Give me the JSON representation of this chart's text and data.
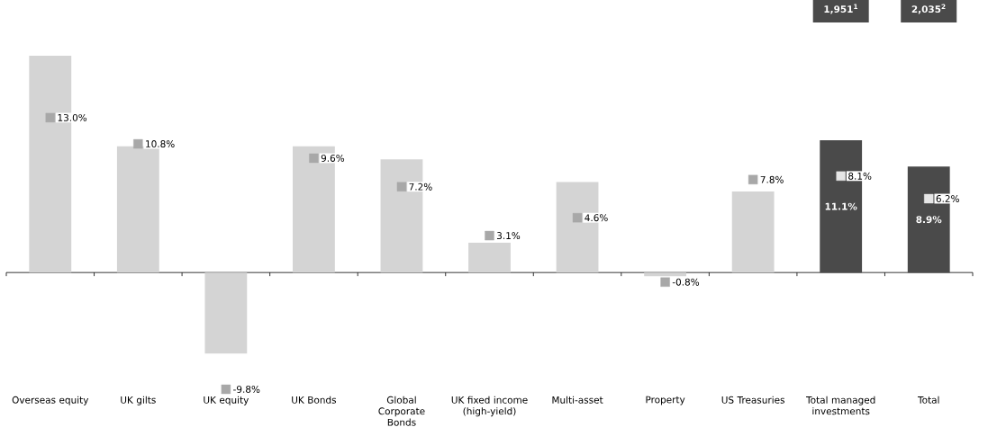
{
  "chart_data": {
    "type": "bar",
    "categories": [
      "Overseas equity",
      "UK gilts",
      "UK equity",
      "UK Bonds",
      "Global Corporate Bonds",
      "UK fixed income (high-yield)",
      "Multi-asset",
      "Property",
      "US Treasuries",
      "Total managed investments",
      "Total"
    ],
    "series": [
      {
        "colors": [
          "#d4d4d4",
          "#d4d4d4",
          "#d4d4d4",
          "#d4d4d4",
          "#d4d4d4",
          "#d4d4d4",
          "#d4d4d4",
          "#d4d4d4",
          "#d4d4d4",
          "#4a4a4a",
          "#4a4a4a"
        ],
        "values": [
          18.2,
          10.6,
          -6.8,
          10.6,
          9.5,
          2.5,
          7.6,
          -0.3,
          6.8,
          11.1,
          8.9
        ],
        "value_labels": [
          null,
          null,
          null,
          null,
          null,
          null,
          null,
          null,
          null,
          "11.1%",
          "8.9%"
        ]
      },
      {
        "type": "scatter",
        "marker": "square",
        "colors": [
          "#a8a8a8",
          "#a8a8a8",
          "#a8a8a8",
          "#a8a8a8",
          "#a8a8a8",
          "#a8a8a8",
          "#a8a8a8",
          "#a8a8a8",
          "#a8a8a8",
          "#e6e6e6",
          "#e6e6e6"
        ],
        "values": [
          13.0,
          10.8,
          -9.8,
          9.6,
          7.2,
          3.1,
          4.6,
          -0.8,
          7.8,
          8.1,
          6.2
        ],
        "value_labels": [
          "13.0%",
          "10.8%",
          "-9.8%",
          "9.6%",
          "7.2%",
          "3.1%",
          "4.6%",
          "-0.8%",
          "7.8%",
          "8.1%",
          "6.2%"
        ]
      }
    ],
    "annotations": [
      "1,951$^{1}$",
      "2,035$^{2}$"
    ],
    "tick_labels": "x"
  }
}
